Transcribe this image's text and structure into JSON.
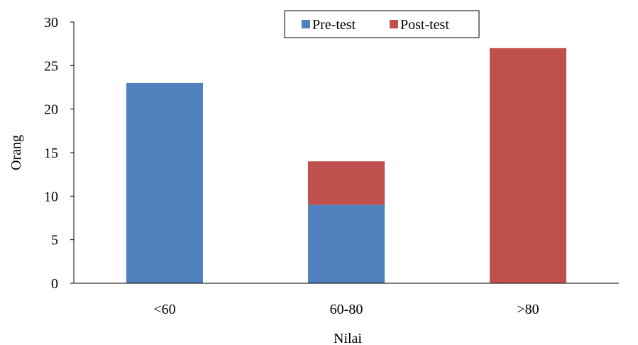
{
  "chart_data": {
    "type": "bar",
    "stacked": true,
    "categories": [
      "<60",
      "60-80",
      ">80"
    ],
    "series": [
      {
        "name": "Pre-test",
        "color": "#4f81bd",
        "values": [
          23,
          9,
          0
        ]
      },
      {
        "name": "Post-test",
        "color": "#c0504d",
        "values": [
          0,
          5,
          27
        ]
      }
    ],
    "xlabel": "Nilai",
    "ylabel": "Orang",
    "ylim": [
      0,
      30
    ],
    "yticks": [
      "0",
      "5",
      "10",
      "15",
      "20",
      "25",
      "30"
    ],
    "grid": false,
    "legend_position": "top-center"
  }
}
